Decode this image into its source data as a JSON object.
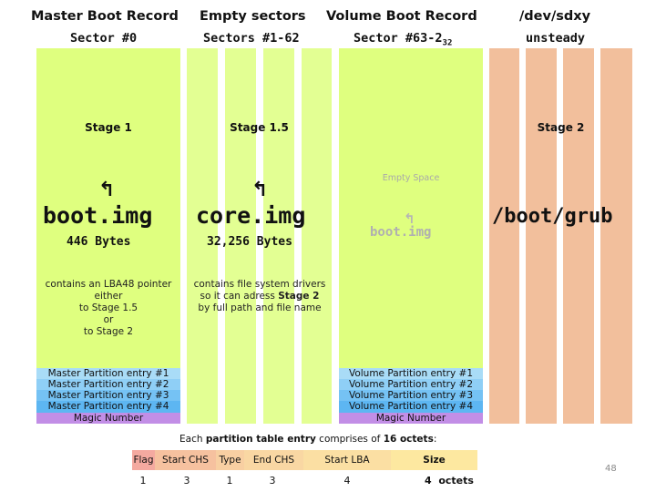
{
  "headers": {
    "mbr_title": "Master Boot Record",
    "mbr_sector": "Sector #0",
    "empty_title": "Empty sectors",
    "empty_sector": "Sectors #1-62",
    "vbr_title": "Volume Boot Record",
    "vbr_sector": "Sector #63-2",
    "vbr_sector_exp": "32",
    "dev_title": "/dev/sdxy",
    "dev_sub": "unsteady"
  },
  "mbr": {
    "stage": "Stage 1",
    "arrow": "↰",
    "name": "boot.img",
    "size": "446 Bytes",
    "desc_lines": [
      "contains an LBA48 pointer",
      "either",
      "to Stage 1.5",
      "or",
      "to Stage 2"
    ],
    "entries": [
      "Master Partition entry #1",
      "Master Partition entry #2",
      "Master Partition entry #3",
      "Master Partition entry #4"
    ],
    "magic": "Magic Number"
  },
  "core": {
    "stage": "Stage 1.5",
    "arrow": "↰",
    "name": "core.img",
    "size": "32,256 Bytes",
    "desc_line1": "contains file system drivers",
    "desc_line2_pre": "so it can adress ",
    "desc_line2_bold": "Stage 2",
    "desc_line3": "by full path and file name"
  },
  "vbr": {
    "empty_space": "Empty Space",
    "arrow": "↰",
    "name": "boot.img",
    "entries": [
      "Volume Partition entry #1",
      "Volume Partition entry #2",
      "Volume Partition entry #3",
      "Volume Partition entry #4"
    ],
    "magic": "Magic Number"
  },
  "dev": {
    "stage": "Stage 2",
    "name": "/boot/grub"
  },
  "ptable": {
    "caption_pre": "Each ",
    "caption_bold1": "partition table entry",
    "caption_mid": " comprises of ",
    "caption_bold2": "16 octets",
    "caption_post": ":",
    "fields": [
      {
        "label": "Flag",
        "size": "1",
        "color": "#f4a9a0"
      },
      {
        "label": "Start CHS",
        "size": "3",
        "color": "#f6c19f"
      },
      {
        "label": "Type",
        "size": "1",
        "color": "#f8cfa2"
      },
      {
        "label": "End CHS",
        "size": "3",
        "color": "#f9d7a3"
      },
      {
        "label": "Start LBA",
        "size": "4",
        "color": "#fbdfa3"
      },
      {
        "label": "Size",
        "size": "4",
        "color": "#fde8a0"
      }
    ],
    "octets": "octets"
  },
  "page_number": "48"
}
